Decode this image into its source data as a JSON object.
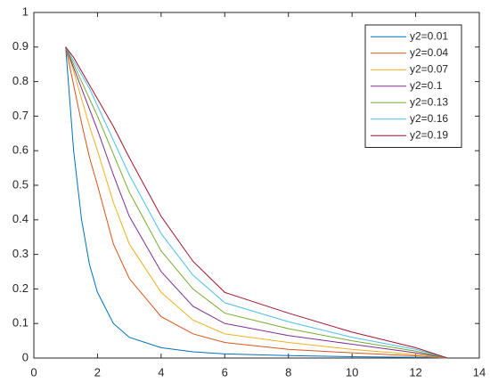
{
  "chart_data": {
    "type": "line",
    "x": [
      1,
      1.25,
      1.5,
      1.75,
      2,
      2.5,
      3,
      4,
      5,
      6,
      8,
      10,
      12,
      13
    ],
    "series": [
      {
        "name": "y2=0.01",
        "color": "#0072BD",
        "values": [
          0.9,
          0.6,
          0.4,
          0.27,
          0.19,
          0.1,
          0.06,
          0.03,
          0.018,
          0.012,
          0.007,
          0.004,
          0.002,
          0
        ]
      },
      {
        "name": "y2=0.04",
        "color": "#D95319",
        "values": [
          0.9,
          0.79,
          0.68,
          0.58,
          0.5,
          0.33,
          0.23,
          0.12,
          0.07,
          0.045,
          0.025,
          0.015,
          0.006,
          0
        ]
      },
      {
        "name": "y2=0.07",
        "color": "#EDB120",
        "values": [
          0.9,
          0.83,
          0.75,
          0.67,
          0.6,
          0.45,
          0.33,
          0.19,
          0.11,
          0.07,
          0.045,
          0.025,
          0.01,
          0
        ]
      },
      {
        "name": "y2=0.1",
        "color": "#7E2F8E",
        "values": [
          0.9,
          0.84,
          0.78,
          0.72,
          0.66,
          0.53,
          0.41,
          0.25,
          0.15,
          0.1,
          0.065,
          0.04,
          0.015,
          0
        ]
      },
      {
        "name": "y2=0.13",
        "color": "#77AC30",
        "values": [
          0.9,
          0.85,
          0.8,
          0.75,
          0.7,
          0.59,
          0.48,
          0.31,
          0.2,
          0.13,
          0.085,
          0.05,
          0.02,
          0
        ]
      },
      {
        "name": "y2=0.16",
        "color": "#4DBEEE",
        "values": [
          0.9,
          0.86,
          0.82,
          0.78,
          0.73,
          0.63,
          0.53,
          0.36,
          0.24,
          0.16,
          0.105,
          0.06,
          0.025,
          0
        ]
      },
      {
        "name": "y2=0.19",
        "color": "#A2142F",
        "values": [
          0.9,
          0.87,
          0.83,
          0.79,
          0.75,
          0.67,
          0.58,
          0.41,
          0.28,
          0.19,
          0.13,
          0.075,
          0.03,
          0
        ]
      }
    ],
    "xlim": [
      0,
      14
    ],
    "xticks": [
      0,
      2,
      4,
      6,
      8,
      10,
      12,
      14
    ],
    "ylim": [
      0,
      1
    ],
    "yticks": [
      0,
      0.1,
      0.2,
      0.3,
      0.4,
      0.5,
      0.6,
      0.7,
      0.8,
      0.9,
      1
    ],
    "grid": false,
    "legend": "northeast"
  }
}
